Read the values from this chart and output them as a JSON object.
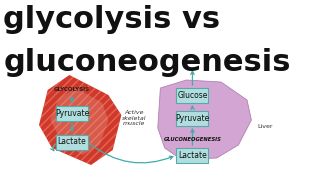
{
  "title_line1": "glycolysis vs",
  "title_line2": "gluconeogenesis",
  "title_fontsize": 22,
  "title_color": "#111111",
  "bg_color": "#ffffff",
  "muscle_label": "GLYCOLYSIS",
  "muscle_sublabel": "Active\nskeletal\nmuscle",
  "liver_label": "GLUCONEOGENESIS",
  "liver_text": "Liver",
  "box_facecolor": "#b0dede",
  "box_edgecolor": "#55aaaa",
  "arrow_color": "#44aaaa",
  "muscle_color1": "#cc2211",
  "muscle_color2": "#dd7766",
  "liver_color": "#cc99cc",
  "liver_edge": "#aa77aa",
  "glycolysis_boxes": [
    "Pyruvate",
    "Lactate"
  ],
  "gluconeo_boxes": [
    "Glucose",
    "Pyruvate",
    "Lactate"
  ]
}
